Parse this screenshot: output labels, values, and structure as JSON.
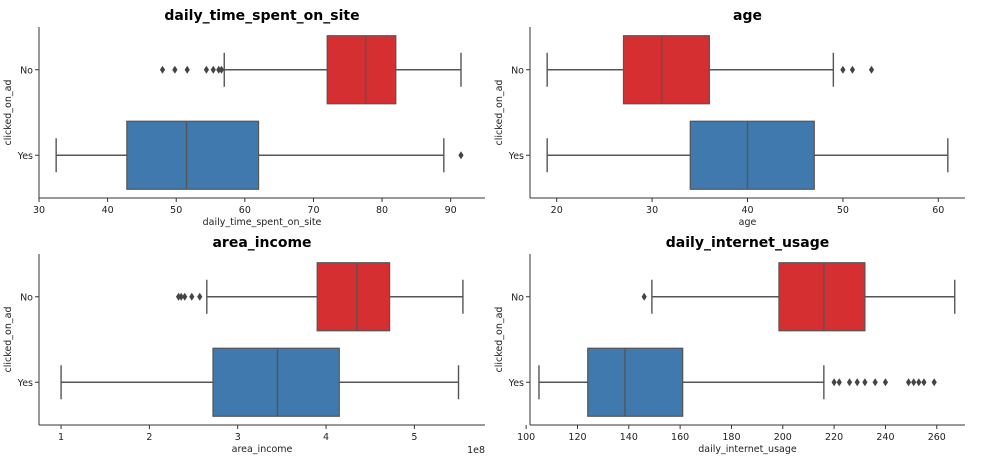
{
  "colors": {
    "No": "#d62f32",
    "Yes": "#3f79ad",
    "flier": "#444444"
  },
  "chart_data": [
    {
      "type": "box",
      "title": "daily_time_spent_on_site",
      "xlabel": "daily_time_spent_on_site",
      "ylabel": "clicked_on_ad",
      "xlim": [
        30,
        95
      ],
      "xticks": [
        30,
        40,
        50,
        60,
        70,
        80,
        90
      ],
      "xtick_labels": [
        "30",
        "40",
        "50",
        "60",
        "70",
        "80",
        "90"
      ],
      "offset_label": "",
      "categories": [
        "No",
        "Yes"
      ],
      "boxes": [
        {
          "name": "No",
          "whislo": 57.0,
          "q1": 72.0,
          "med": 77.6,
          "q3": 82.0,
          "whishi": 91.5,
          "fliers": [
            48.0,
            49.8,
            51.6,
            54.4,
            55.4,
            56.2,
            56.6
          ]
        },
        {
          "name": "Yes",
          "whislo": 32.5,
          "q1": 42.8,
          "med": 51.5,
          "q3": 62.0,
          "whishi": 89.0,
          "fliers": [
            91.5
          ]
        }
      ]
    },
    {
      "type": "box",
      "title": "age",
      "xlabel": "age",
      "ylabel": "clicked_on_ad",
      "xlim": [
        17.2,
        62.8
      ],
      "xticks": [
        20,
        30,
        40,
        50,
        60
      ],
      "xtick_labels": [
        "20",
        "30",
        "40",
        "50",
        "60"
      ],
      "offset_label": "",
      "categories": [
        "No",
        "Yes"
      ],
      "boxes": [
        {
          "name": "No",
          "whislo": 19,
          "q1": 27,
          "med": 31,
          "q3": 36,
          "whishi": 49,
          "fliers": [
            50,
            51,
            53
          ]
        },
        {
          "name": "Yes",
          "whislo": 19,
          "q1": 34,
          "med": 40,
          "q3": 47,
          "whishi": 61,
          "fliers": []
        }
      ]
    },
    {
      "type": "box",
      "title": "area_income",
      "xlabel": "area_income",
      "ylabel": "clicked_on_ad",
      "xlim": [
        0.75,
        5.8
      ],
      "xticks": [
        1,
        2,
        3,
        4,
        5
      ],
      "xtick_labels": [
        "1",
        "2",
        "3",
        "4",
        "5"
      ],
      "offset_label": "1e8",
      "categories": [
        "No",
        "Yes"
      ],
      "boxes": [
        {
          "name": "No",
          "whislo": 2.65,
          "q1": 3.9,
          "med": 4.35,
          "q3": 4.72,
          "whishi": 5.55,
          "fliers": [
            2.33,
            2.36,
            2.4,
            2.48,
            2.57
          ]
        },
        {
          "name": "Yes",
          "whislo": 1.0,
          "q1": 2.72,
          "med": 3.45,
          "q3": 4.15,
          "whishi": 5.5,
          "fliers": []
        }
      ]
    },
    {
      "type": "box",
      "title": "daily_internet_usage",
      "xlabel": "daily_internet_usage",
      "ylabel": "clicked_on_ad",
      "xlim": [
        101.5,
        271
      ],
      "xticks": [
        100,
        120,
        140,
        160,
        180,
        200,
        220,
        240,
        260
      ],
      "xtick_labels": [
        "100",
        "120",
        "140",
        "160",
        "180",
        "200",
        "220",
        "240",
        "260"
      ],
      "offset_label": "",
      "categories": [
        "No",
        "Yes"
      ],
      "boxes": [
        {
          "name": "No",
          "whislo": 149,
          "q1": 198.5,
          "med": 216,
          "q3": 232,
          "whishi": 267,
          "fliers": [
            146
          ]
        },
        {
          "name": "Yes",
          "whislo": 105,
          "q1": 124,
          "med": 138.5,
          "q3": 161,
          "whishi": 216,
          "fliers": [
            220,
            222,
            226,
            229,
            232,
            236,
            240,
            249,
            251,
            253,
            255,
            259
          ]
        }
      ]
    }
  ]
}
